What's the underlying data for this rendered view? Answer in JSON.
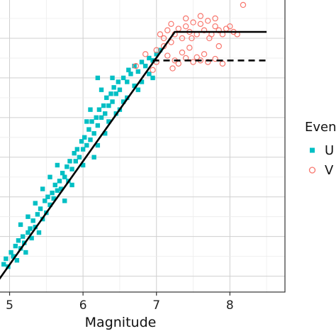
{
  "chart_data": {
    "type": "scatter",
    "title": "",
    "xlabel": "Magnitude",
    "ylabel": "",
    "xlim": [
      4.85,
      8.75
    ],
    "ylim": [
      -0.2,
      3.5
    ],
    "x_ticks": [
      {
        "value": 5,
        "label": "5"
      },
      {
        "value": 6,
        "label": "6"
      },
      {
        "value": 7,
        "label": "7"
      },
      {
        "value": 8,
        "label": "8"
      }
    ],
    "grid": true,
    "legend": {
      "title": "Even",
      "placement": "right",
      "entries": [
        {
          "label": "U",
          "marker": "filled-square",
          "color": "#00BFC4"
        },
        {
          "label": "V",
          "marker": "open-circle",
          "color": "#F8766D"
        }
      ]
    },
    "series": [
      {
        "name": "U",
        "marker": "filled-square",
        "color": "#00BFC4",
        "points": [
          [
            4.92,
            0.15
          ],
          [
            4.95,
            0.22
          ],
          [
            4.98,
            0.12
          ],
          [
            5.02,
            0.3
          ],
          [
            5.05,
            0.25
          ],
          [
            5.08,
            0.38
          ],
          [
            5.1,
            0.2
          ],
          [
            5.12,
            0.45
          ],
          [
            5.15,
            0.35
          ],
          [
            5.18,
            0.5
          ],
          [
            5.2,
            0.42
          ],
          [
            5.22,
            0.3
          ],
          [
            5.25,
            0.55
          ],
          [
            5.28,
            0.6
          ],
          [
            5.3,
            0.48
          ],
          [
            5.32,
            0.7
          ],
          [
            5.35,
            0.62
          ],
          [
            5.38,
            0.78
          ],
          [
            5.4,
            0.55
          ],
          [
            5.42,
            0.85
          ],
          [
            5.45,
            0.72
          ],
          [
            5.48,
            0.95
          ],
          [
            5.5,
            0.8
          ],
          [
            5.52,
            1.0
          ],
          [
            5.55,
            0.9
          ],
          [
            5.58,
            1.05
          ],
          [
            5.6,
            0.98
          ],
          [
            5.62,
            1.15
          ],
          [
            5.65,
            1.08
          ],
          [
            5.68,
            1.2
          ],
          [
            5.7,
            1.1
          ],
          [
            5.72,
            1.3
          ],
          [
            5.75,
            1.25
          ],
          [
            5.78,
            1.38
          ],
          [
            5.8,
            1.2
          ],
          [
            5.82,
            1.45
          ],
          [
            5.85,
            1.35
          ],
          [
            5.88,
            1.55
          ],
          [
            5.9,
            1.45
          ],
          [
            5.92,
            1.6
          ],
          [
            5.95,
            1.5
          ],
          [
            5.98,
            1.7
          ],
          [
            6.0,
            1.6
          ],
          [
            6.02,
            1.75
          ],
          [
            6.05,
            1.65
          ],
          [
            6.08,
            1.85
          ],
          [
            6.1,
            1.72
          ],
          [
            6.12,
            1.95
          ],
          [
            6.15,
            1.8
          ],
          [
            6.18,
            2.0
          ],
          [
            6.2,
            1.9
          ],
          [
            6.22,
            2.1
          ],
          [
            6.25,
            2.0
          ],
          [
            6.28,
            2.15
          ],
          [
            6.3,
            2.05
          ],
          [
            6.32,
            2.25
          ],
          [
            6.35,
            2.15
          ],
          [
            6.38,
            2.3
          ],
          [
            6.4,
            2.2
          ],
          [
            6.42,
            2.38
          ],
          [
            6.45,
            2.3
          ],
          [
            6.48,
            2.45
          ],
          [
            6.5,
            2.35
          ],
          [
            6.55,
            2.5
          ],
          [
            6.6,
            2.45
          ],
          [
            6.62,
            2.6
          ],
          [
            6.65,
            2.55
          ],
          [
            6.7,
            2.65
          ],
          [
            6.75,
            2.58
          ],
          [
            6.8,
            2.7
          ],
          [
            6.85,
            2.65
          ],
          [
            6.9,
            2.75
          ],
          [
            6.95,
            2.72
          ],
          [
            7.0,
            2.8
          ],
          [
            5.85,
            1.15
          ],
          [
            6.0,
            1.4
          ],
          [
            6.1,
            2.1
          ],
          [
            6.2,
            1.65
          ],
          [
            6.25,
            2.35
          ],
          [
            6.35,
            1.95
          ],
          [
            6.4,
            2.5
          ],
          [
            6.5,
            2.1
          ],
          [
            6.6,
            2.25
          ],
          [
            6.7,
            2.4
          ],
          [
            6.8,
            2.45
          ],
          [
            6.9,
            2.55
          ],
          [
            5.65,
            1.4
          ],
          [
            5.75,
            0.95
          ],
          [
            5.55,
            1.25
          ],
          [
            5.45,
            1.1
          ],
          [
            5.35,
            0.92
          ],
          [
            5.25,
            0.75
          ],
          [
            5.15,
            0.65
          ],
          [
            6.05,
            1.95
          ],
          [
            6.15,
            1.5
          ],
          [
            6.3,
            1.8
          ],
          [
            6.45,
            2.05
          ],
          [
            6.55,
            2.2
          ],
          [
            6.75,
            2.35
          ],
          [
            6.95,
            2.5
          ],
          [
            7.05,
            2.85
          ],
          [
            6.2,
            2.5
          ]
        ]
      },
      {
        "name": "V",
        "marker": "open-circle",
        "color": "#F8766D",
        "points": [
          [
            6.72,
            2.65
          ],
          [
            6.85,
            2.8
          ],
          [
            7.0,
            2.85
          ],
          [
            7.05,
            3.05
          ],
          [
            7.1,
            3.0
          ],
          [
            7.15,
            3.1
          ],
          [
            7.2,
            2.95
          ],
          [
            7.25,
            3.05
          ],
          [
            7.3,
            3.12
          ],
          [
            7.35,
            3.0
          ],
          [
            7.4,
            3.15
          ],
          [
            7.45,
            3.08
          ],
          [
            7.5,
            3.2
          ],
          [
            7.55,
            3.05
          ],
          [
            7.6,
            3.18
          ],
          [
            7.65,
            3.1
          ],
          [
            7.7,
            3.22
          ],
          [
            7.75,
            3.05
          ],
          [
            7.8,
            3.15
          ],
          [
            7.85,
            3.1
          ],
          [
            7.9,
            3.05
          ],
          [
            7.95,
            3.12
          ],
          [
            8.05,
            3.08
          ],
          [
            8.1,
            3.05
          ],
          [
            8.18,
            3.42
          ],
          [
            7.25,
            2.72
          ],
          [
            7.3,
            2.68
          ],
          [
            7.4,
            2.75
          ],
          [
            7.5,
            2.7
          ],
          [
            7.55,
            2.76
          ],
          [
            7.6,
            2.72
          ],
          [
            7.7,
            2.7
          ],
          [
            7.8,
            2.74
          ],
          [
            7.9,
            2.68
          ],
          [
            7.0,
            2.7
          ],
          [
            7.15,
            2.78
          ],
          [
            7.35,
            2.82
          ],
          [
            7.45,
            2.88
          ],
          [
            7.65,
            2.8
          ],
          [
            7.85,
            2.9
          ],
          [
            7.2,
            3.18
          ],
          [
            7.4,
            3.25
          ],
          [
            7.6,
            3.28
          ],
          [
            7.8,
            3.25
          ],
          [
            6.95,
            2.6
          ],
          [
            7.1,
            2.9
          ],
          [
            7.22,
            2.62
          ],
          [
            7.48,
            3.0
          ],
          [
            7.72,
            3.0
          ],
          [
            8.0,
            3.15
          ]
        ]
      }
    ],
    "fit_lines": [
      {
        "style": "solid",
        "color": "#000000",
        "points": [
          [
            4.85,
            -0.05
          ],
          [
            7.25,
            3.08
          ],
          [
            8.5,
            3.08
          ]
        ]
      },
      {
        "style": "dashed",
        "color": "#000000",
        "points": [
          [
            6.95,
            2.72
          ],
          [
            8.5,
            2.72
          ]
        ]
      }
    ]
  }
}
